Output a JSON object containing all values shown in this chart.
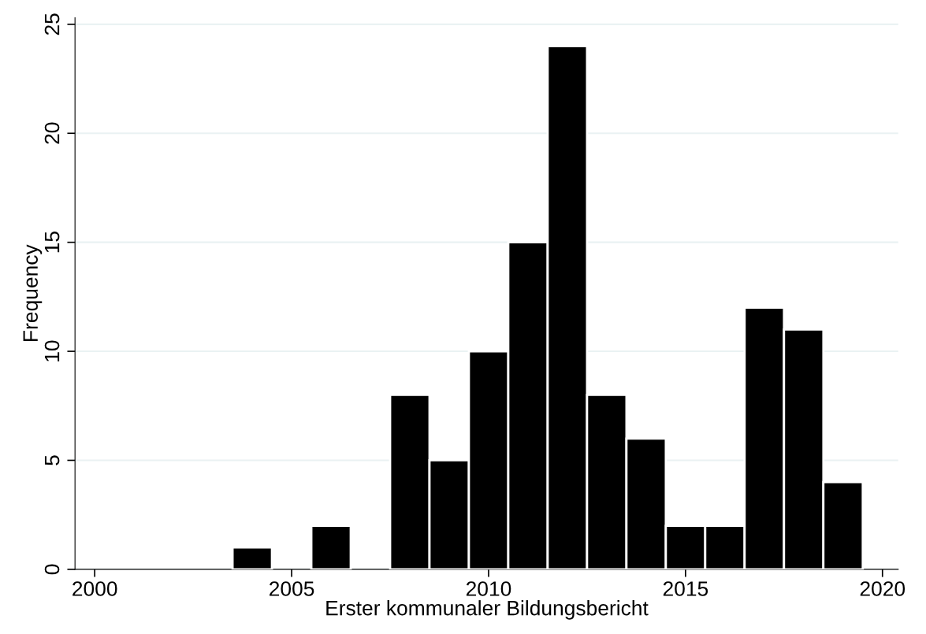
{
  "chart_data": {
    "type": "histogram",
    "xlabel": "Erster kommunaler Bildungsbericht",
    "ylabel": "Frequency",
    "bins": [
      2003.5,
      2004.5,
      2005.5,
      2006.5,
      2007.5,
      2008.5,
      2009.5,
      2010.5,
      2011.5,
      2012.5,
      2013.5,
      2014.5,
      2015.5,
      2016.5,
      2017.5,
      2018.5,
      2019.5
    ],
    "values": [
      1,
      0,
      2,
      0,
      8,
      5,
      10,
      15,
      24,
      8,
      6,
      2,
      2,
      12,
      11,
      4
    ],
    "color": "#000000",
    "xlim": [
      1999.5,
      2020.4
    ],
    "xticks": [
      2000,
      2005,
      2010,
      2015,
      2020
    ],
    "ylim": [
      0,
      25.3
    ],
    "yticks": [
      0,
      5,
      10,
      15,
      20,
      25
    ],
    "grid": "y",
    "legend": false
  }
}
